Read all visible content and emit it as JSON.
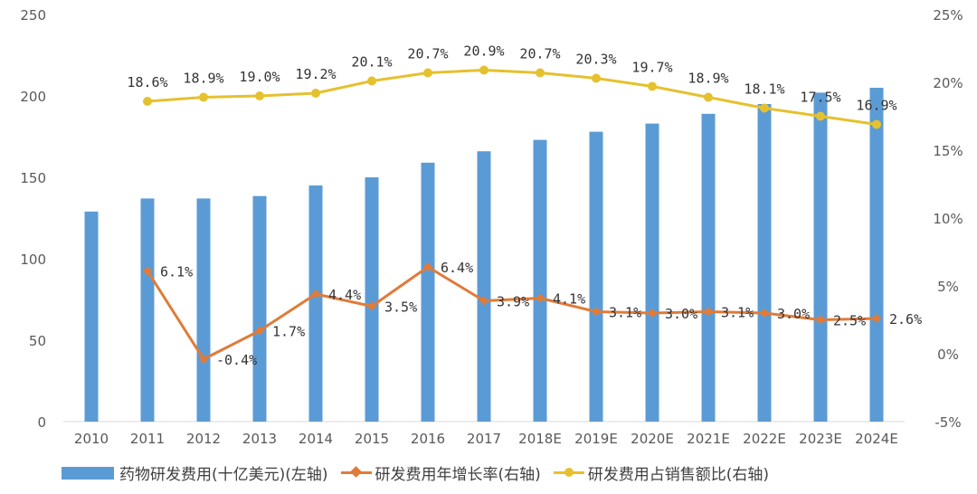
{
  "chart_data": {
    "type": "bar",
    "categories": [
      "2010",
      "2011",
      "2012",
      "2013",
      "2014",
      "2015",
      "2016",
      "2017",
      "2018E",
      "2019E",
      "2020E",
      "2021E",
      "2022E",
      "2023E",
      "2024E"
    ],
    "y_left": {
      "min": 0,
      "max": 250,
      "step": 50,
      "tick_labels": [
        "0",
        "50",
        "100",
        "150",
        "200",
        "250"
      ]
    },
    "y_right": {
      "min": -5,
      "max": 25,
      "step": 5,
      "tick_labels": [
        "-5%",
        "0%",
        "5%",
        "10%",
        "15%",
        "20%",
        "25%"
      ]
    },
    "grid": false,
    "legend_position": "bottom",
    "series": [
      {
        "name": "药物研发费用(十亿美元)(左轴)",
        "type": "bar",
        "axis": "left",
        "color": "#5B9BD5",
        "values": [
          129,
          137,
          137,
          138.5,
          145,
          150,
          159,
          166,
          173,
          178,
          183,
          189,
          195,
          202,
          205
        ]
      },
      {
        "name": "研发费用年增长率(右轴)",
        "type": "line",
        "axis": "right",
        "color": "#E07B39",
        "marker": "diamond",
        "values": [
          null,
          6.1,
          -0.4,
          1.7,
          4.4,
          3.5,
          6.4,
          3.9,
          4.1,
          3.1,
          3.0,
          3.1,
          3.0,
          2.5,
          2.6
        ],
        "labels": [
          null,
          "6.1%",
          "-0.4%",
          "1.7%",
          "4.4%",
          "3.5%",
          "6.4%",
          "3.9%",
          "4.1%",
          "3.1%",
          "3.0%",
          "3.1%",
          "3.0%",
          "2.5%",
          "2.6%"
        ]
      },
      {
        "name": "研发费用占销售额比(右轴)",
        "type": "line",
        "axis": "right",
        "color": "#E5C12E",
        "marker": "circle",
        "values": [
          null,
          18.6,
          18.9,
          19.0,
          19.2,
          20.1,
          20.7,
          20.9,
          20.7,
          20.3,
          19.7,
          18.9,
          18.1,
          17.5,
          16.9
        ],
        "labels": [
          null,
          "18.6%",
          "18.9%",
          "19.0%",
          "19.2%",
          "20.1%",
          "20.7%",
          "20.9%",
          "20.7%",
          "20.3%",
          "19.7%",
          "18.9%",
          "18.1%",
          "17.5%",
          "16.9%"
        ]
      }
    ]
  }
}
